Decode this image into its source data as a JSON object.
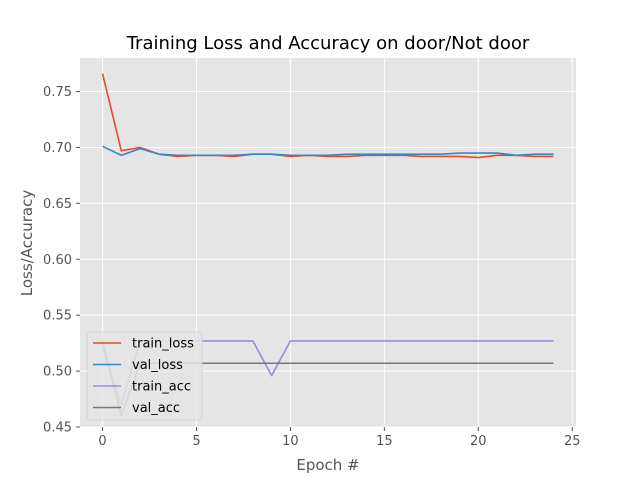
{
  "chart_data": {
    "type": "line",
    "title": "Training Loss and Accuracy on door/Not door",
    "xlabel": "Epoch #",
    "ylabel": "Loss/Accuracy",
    "xlim": [
      -1.2,
      25.2
    ],
    "ylim": [
      0.45,
      0.78
    ],
    "xticks": [
      0,
      5,
      10,
      15,
      20,
      25
    ],
    "xtick_labels": [
      "0",
      "5",
      "10",
      "15",
      "20",
      "25"
    ],
    "yticks": [
      0.45,
      0.5,
      0.55,
      0.6,
      0.65,
      0.7,
      0.75
    ],
    "ytick_labels": [
      "0.45",
      "0.50",
      "0.55",
      "0.60",
      "0.65",
      "0.70",
      "0.75"
    ],
    "grid": true,
    "legend_position": "lower-left",
    "x": [
      0,
      1,
      2,
      3,
      4,
      5,
      6,
      7,
      8,
      9,
      10,
      11,
      12,
      13,
      14,
      15,
      16,
      17,
      18,
      19,
      20,
      21,
      22,
      23,
      24
    ],
    "series": [
      {
        "name": "train_loss",
        "color": "#E24A33",
        "values": [
          0.766,
          0.697,
          0.7,
          0.694,
          0.692,
          0.693,
          0.693,
          0.692,
          0.694,
          0.694,
          0.692,
          0.693,
          0.692,
          0.692,
          0.693,
          0.693,
          0.693,
          0.692,
          0.692,
          0.692,
          0.691,
          0.693,
          0.693,
          0.692,
          0.692
        ]
      },
      {
        "name": "val_loss",
        "color": "#348ABD",
        "values": [
          0.701,
          0.693,
          0.699,
          0.694,
          0.693,
          0.693,
          0.693,
          0.693,
          0.694,
          0.694,
          0.693,
          0.693,
          0.693,
          0.694,
          0.694,
          0.694,
          0.694,
          0.694,
          0.694,
          0.695,
          0.695,
          0.695,
          0.693,
          0.694,
          0.694
        ]
      },
      {
        "name": "train_acc",
        "color": "#988ED5",
        "values": [
          0.52,
          0.47,
          0.527,
          0.527,
          0.527,
          0.527,
          0.527,
          0.527,
          0.527,
          0.496,
          0.527,
          0.527,
          0.527,
          0.527,
          0.527,
          0.527,
          0.527,
          0.527,
          0.527,
          0.527,
          0.527,
          0.527,
          0.527,
          0.527,
          0.527
        ]
      },
      {
        "name": "val_acc",
        "color": "#777777",
        "values": [
          0.527,
          0.46,
          0.507,
          0.507,
          0.507,
          0.507,
          0.507,
          0.507,
          0.507,
          0.507,
          0.507,
          0.507,
          0.507,
          0.507,
          0.507,
          0.507,
          0.507,
          0.507,
          0.507,
          0.507,
          0.507,
          0.507,
          0.507,
          0.507,
          0.507
        ]
      }
    ]
  }
}
